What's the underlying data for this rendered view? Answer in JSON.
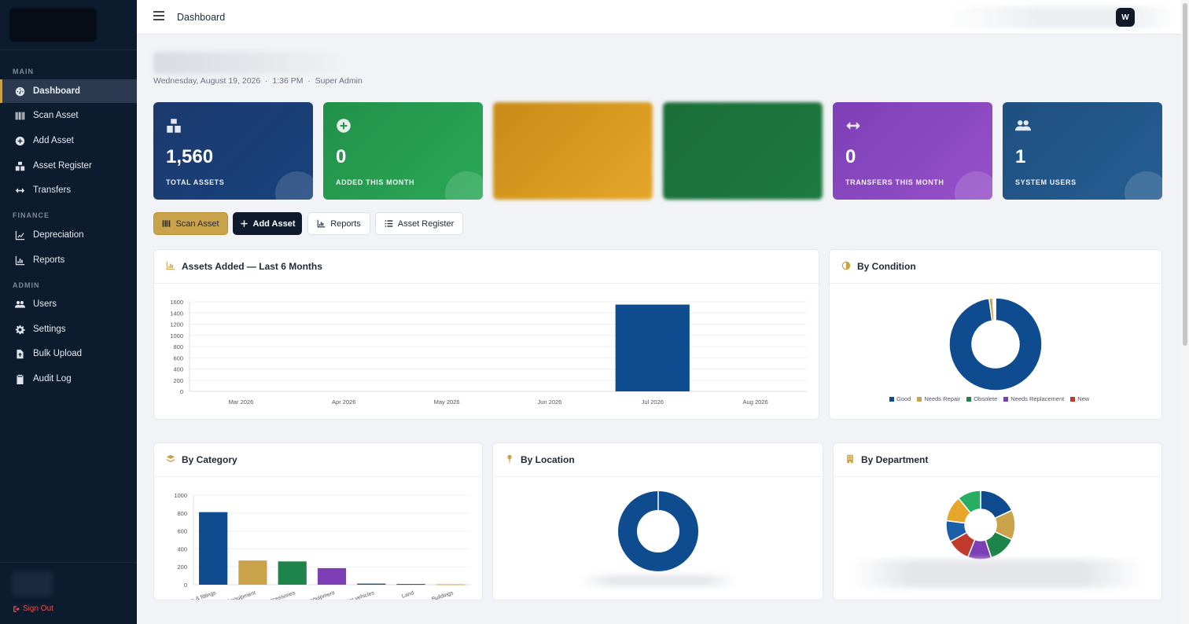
{
  "sidebar": {
    "sections": [
      {
        "label": "MAIN",
        "items": [
          {
            "label": "Dashboard",
            "icon": "gauge-icon",
            "active": true
          },
          {
            "label": "Scan Asset",
            "icon": "barcode-icon"
          },
          {
            "label": "Add Asset",
            "icon": "plus-circle-icon"
          },
          {
            "label": "Asset Register",
            "icon": "boxes-icon"
          },
          {
            "label": "Transfers",
            "icon": "arrows-horizontal-icon"
          }
        ]
      },
      {
        "label": "FINANCE",
        "items": [
          {
            "label": "Depreciation",
            "icon": "line-chart-icon"
          },
          {
            "label": "Reports",
            "icon": "bar-chart-icon"
          }
        ]
      },
      {
        "label": "ADMIN",
        "items": [
          {
            "label": "Users",
            "icon": "users-icon"
          },
          {
            "label": "Settings",
            "icon": "gear-icon"
          },
          {
            "label": "Bulk Upload",
            "icon": "file-upload-icon"
          },
          {
            "label": "Audit Log",
            "icon": "clipboard-icon"
          }
        ]
      }
    ],
    "signout": "Sign Out"
  },
  "topbar": {
    "title": "Dashboard",
    "avatar": "W"
  },
  "header": {
    "date": "Wednesday, August 19, 2026",
    "time": "1:36 PM",
    "role": "Super Admin"
  },
  "stats": [
    {
      "value": "1,560",
      "label": "TOTAL ASSETS",
      "icon": "boxes-icon"
    },
    {
      "value": "0",
      "label": "ADDED THIS MONTH",
      "icon": "plus-circle-icon"
    },
    {
      "value": "",
      "label": "",
      "icon": ""
    },
    {
      "value": "",
      "label": "",
      "icon": ""
    },
    {
      "value": "0",
      "label": "TRANSFERS THIS MONTH",
      "icon": "arrows-horizontal-icon"
    },
    {
      "value": "1",
      "label": "SYSTEM USERS",
      "icon": "users-icon"
    }
  ],
  "actions": {
    "scan": "Scan Asset",
    "add": "Add Asset",
    "reports": "Reports",
    "register": "Asset Register"
  },
  "panels": {
    "assets_added": "Assets Added — Last 6 Months",
    "by_condition": "By Condition",
    "by_category": "By Category",
    "by_location": "By Location",
    "by_department": "By Department"
  },
  "colors": {
    "navy": "#0d1b2e",
    "gold": "#c9a24a",
    "chart_blue": "#0e4c8f"
  },
  "chart_data": [
    {
      "type": "bar",
      "categories": [
        "Mar 2026",
        "Apr 2026",
        "May 2026",
        "Jun 2026",
        "Jul 2026",
        "Aug 2026"
      ],
      "values": [
        0,
        0,
        0,
        0,
        1550,
        0
      ],
      "yticks": [
        0,
        200,
        400,
        600,
        800,
        1000,
        1200,
        1400,
        1600
      ],
      "ylim": [
        0,
        1600
      ],
      "color": "#0e4c8f"
    },
    {
      "type": "pie",
      "donut": true,
      "labels": [
        "Good",
        "Needs Repair",
        "Obsolete",
        "Needs Replacement",
        "New"
      ],
      "values": [
        1525,
        20,
        5,
        5,
        5
      ],
      "colors": [
        "#0e4c8f",
        "#c9a24a",
        "#1e8449",
        "#7d3fb6",
        "#c0392b"
      ],
      "legend": "bottom"
    },
    {
      "type": "bar",
      "categories": [
        "furniture & fittings",
        "plant & medical equipment",
        "computer & accessories",
        "office equipment",
        "motor vehicles",
        "Land",
        "Buildings"
      ],
      "values": [
        810,
        270,
        260,
        185,
        12,
        8,
        5
      ],
      "colors": [
        "#0e4c8f",
        "#c9a24a",
        "#1e8449",
        "#7d3fb6",
        "#0e4c8f",
        "#0e4c8f",
        "#c9a24a"
      ],
      "yticks": [
        0,
        200,
        400,
        600,
        800,
        1000
      ],
      "ylim": [
        0,
        1000
      ]
    },
    {
      "type": "pie",
      "donut": true,
      "values": [
        1560
      ],
      "colors": [
        "#0e4c8f"
      ]
    },
    {
      "type": "pie",
      "donut": true,
      "values": [
        18,
        14,
        13,
        11,
        11,
        10,
        12,
        11
      ],
      "colors": [
        "#0e4c8f",
        "#c9a24a",
        "#1e8449",
        "#7d3fb6",
        "#c0392b",
        "#1a5fa8",
        "#e6a62a",
        "#27ae60"
      ]
    }
  ]
}
